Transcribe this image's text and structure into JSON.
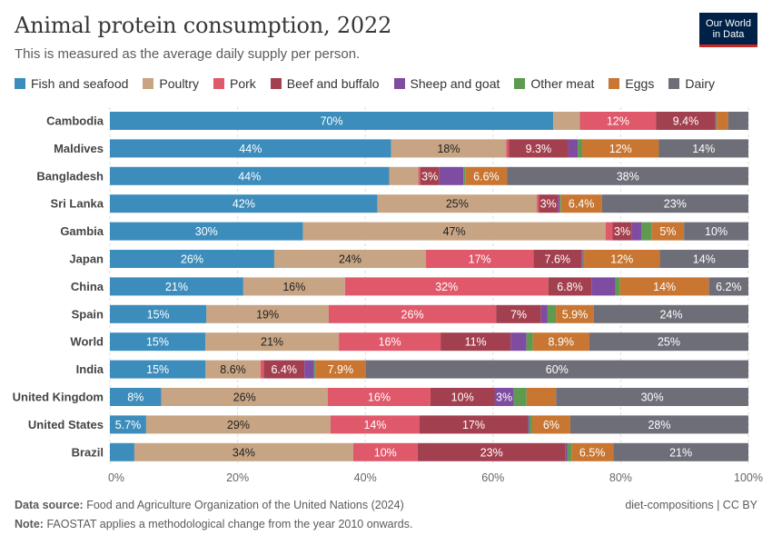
{
  "header": {
    "title": "Animal protein consumption, 2022",
    "subtitle": "This is measured as the average daily supply per person.",
    "logo_line1": "Our World",
    "logo_line2": "in Data"
  },
  "footer": {
    "source_label": "Data source:",
    "source_text": "Food and Agriculture Organization of the United Nations (2024)",
    "slug": "diet-compositions | CC BY",
    "note_label": "Note:",
    "note_text": "FAOSTAT applies a methodological change from the year 2010 onwards."
  },
  "chart_data": {
    "type": "bar",
    "orientation": "horizontal",
    "stacked": true,
    "title": "Animal protein consumption, 2022",
    "subtitle": "This is measured as the average daily supply per person.",
    "xlim": [
      0,
      100
    ],
    "x_ticks": [
      "0%",
      "20%",
      "40%",
      "60%",
      "80%",
      "100%"
    ],
    "grid": true,
    "legend_position": "top",
    "categories": [
      "Cambodia",
      "Maldives",
      "Bangladesh",
      "Sri Lanka",
      "Gambia",
      "Japan",
      "China",
      "Spain",
      "World",
      "India",
      "United Kingdom",
      "United States",
      "Brazil"
    ],
    "series": [
      {
        "name": "Fish and seafood",
        "color": "#3c8dbc",
        "values": [
          70,
          44,
          44,
          42,
          30,
          26,
          21,
          15,
          15,
          15,
          8,
          5.7,
          3.8
        ]
      },
      {
        "name": "Poultry",
        "color": "#c7a584",
        "values": [
          4.2,
          18,
          4.6,
          25,
          47,
          24,
          16,
          19,
          21,
          8.6,
          26,
          29,
          34
        ]
      },
      {
        "name": "Pork",
        "color": "#e0596b",
        "values": [
          12,
          0.4,
          0.3,
          0.3,
          1.1,
          17,
          32,
          26,
          16,
          0.5,
          16,
          14,
          10
        ]
      },
      {
        "name": "Beef and buffalo",
        "color": "#a3404f",
        "values": [
          9.4,
          9.3,
          3,
          3,
          3,
          7.6,
          6.8,
          7,
          11,
          6.4,
          10,
          17,
          23
        ]
      },
      {
        "name": "Sheep and goat",
        "color": "#7e4ca0",
        "values": [
          0.1,
          1.5,
          3.8,
          0.3,
          1.5,
          0.2,
          3.8,
          1,
          2.5,
          1.5,
          3,
          0.2,
          0.3
        ]
      },
      {
        "name": "Other meat",
        "color": "#5e9a50",
        "values": [
          0.1,
          0.7,
          0.3,
          0.2,
          1.6,
          0.2,
          0.7,
          1.3,
          1,
          0.2,
          2,
          0.5,
          0.6
        ]
      },
      {
        "name": "Eggs",
        "color": "#c87632",
        "values": [
          1.8,
          12,
          6.6,
          6.4,
          5,
          12,
          14,
          5.9,
          8.9,
          7.9,
          4.6,
          6,
          6.5
        ]
      },
      {
        "name": "Dairy",
        "color": "#6d6e78",
        "values": [
          3.2,
          14,
          38,
          23,
          10,
          14,
          6.2,
          24,
          25,
          60,
          30,
          28,
          21
        ]
      }
    ]
  }
}
